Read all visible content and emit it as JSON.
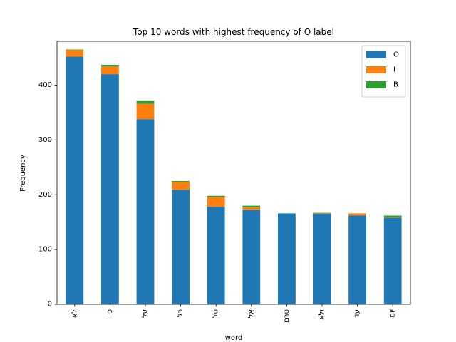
{
  "chart_data": {
    "type": "bar",
    "stacked": true,
    "title": "Top 10 words with highest frequency of O label",
    "xlabel": "word",
    "ylabel": "Frequency",
    "ylim": [
      0,
      480
    ],
    "yticks": [
      0,
      100,
      200,
      300,
      400
    ],
    "categories": [
      "לא",
      "כי",
      "על",
      "כל",
      "טל",
      "אל",
      "טרם",
      "ולא",
      "עד",
      "יום"
    ],
    "series": [
      {
        "name": "O",
        "color": "#1f77b4",
        "values": [
          452,
          420,
          338,
          209,
          178,
          172,
          166,
          165,
          162,
          158
        ]
      },
      {
        "name": "I",
        "color": "#ff7f0e",
        "values": [
          12,
          14,
          28,
          14,
          18,
          5,
          0,
          1,
          4,
          1
        ]
      },
      {
        "name": "B",
        "color": "#2ca02c",
        "values": [
          1,
          3,
          5,
          2,
          2,
          3,
          0,
          1,
          0,
          3
        ]
      }
    ],
    "grid": false,
    "legend": "top-right"
  }
}
